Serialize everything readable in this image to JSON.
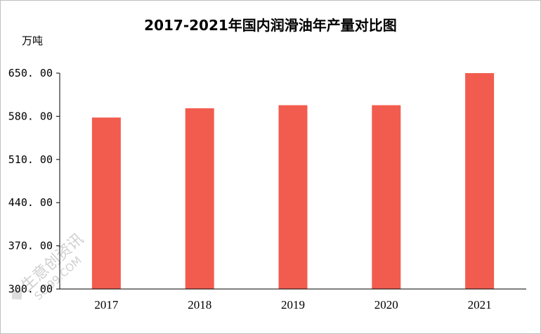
{
  "chart_data": {
    "type": "bar",
    "title": "2017-2021年国内润滑油年产量对比图",
    "ylabel": "万吨",
    "xlabel": "",
    "categories": [
      "2017",
      "2018",
      "2019",
      "2020",
      "2021"
    ],
    "series": [
      {
        "values": [
          578,
          593,
          598,
          598,
          650
        ],
        "color": "#f25c4e"
      }
    ],
    "ylim": [
      300,
      650
    ],
    "yticks": [
      "650. 00",
      "580. 00",
      "510. 00",
      "440. 00",
      "370. 00",
      "300. 00"
    ],
    "ytick_values": [
      650,
      580,
      510,
      440,
      370,
      300
    ],
    "grid": false,
    "legend": "none"
  },
  "watermark": {
    "text_cn": "生意创资讯",
    "text_en": "SCI99.COM"
  }
}
